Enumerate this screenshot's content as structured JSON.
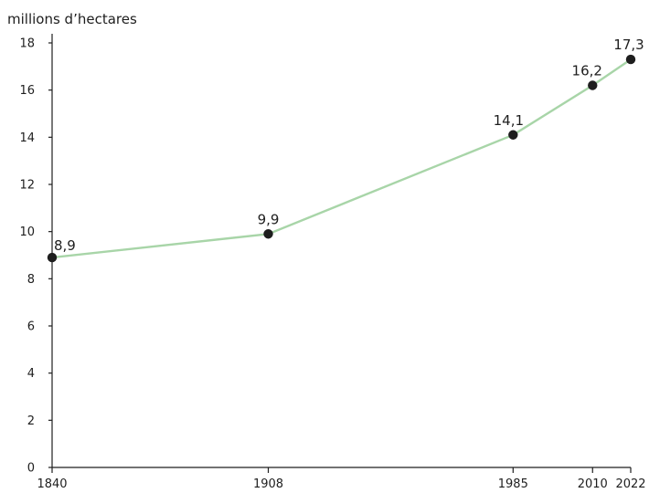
{
  "chart_data": {
    "type": "line",
    "title": "",
    "xlabel": "",
    "ylabel": "millions d’hectares",
    "x": [
      1840,
      1908,
      1985,
      2010,
      2022
    ],
    "x_tick_labels": [
      "1840",
      "1908",
      "1985",
      "2010",
      "2022"
    ],
    "series": [
      {
        "values": [
          8.9,
          9.9,
          14.1,
          16.2,
          17.3
        ],
        "data_labels": [
          "8,9",
          "9,9",
          "14,1",
          "16,2",
          "17,3"
        ]
      }
    ],
    "ylim": [
      0,
      18
    ],
    "y_ticks": [
      0,
      2,
      4,
      6,
      8,
      10,
      12,
      14,
      16,
      18
    ],
    "y_tick_labels": [
      "0",
      "2",
      "4",
      "6",
      "8",
      "10",
      "12",
      "14",
      "16",
      "18"
    ],
    "grid": false,
    "legend": "none",
    "colors": {
      "line": "#a8d5a8",
      "marker": "#1e1e1e",
      "axis": "#1e1e1e"
    }
  }
}
